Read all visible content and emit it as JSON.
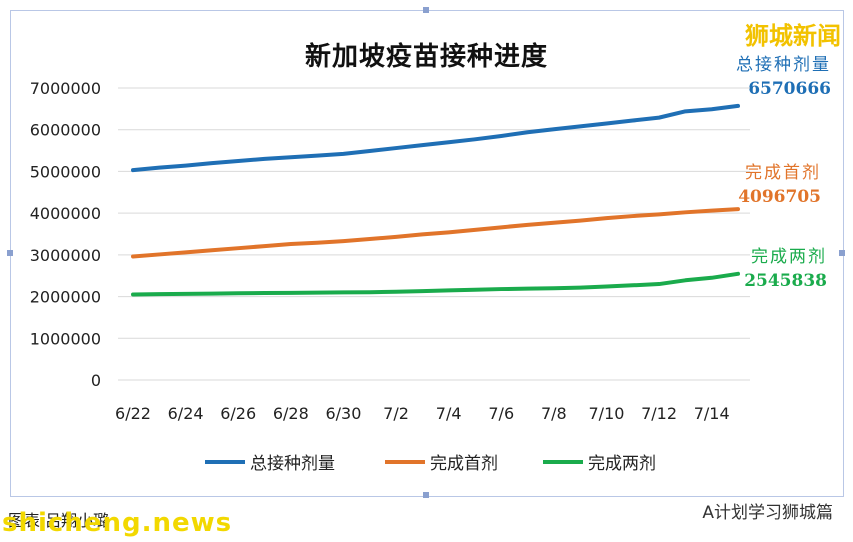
{
  "brand": "狮城新闻",
  "footer": {
    "left": "图表  吕翔小璐",
    "watermark": "shicheng.news",
    "right": "A计划学习狮城篇"
  },
  "chart_data": {
    "type": "line",
    "title": "新加坡疫苗接种进度",
    "x": [
      "6/22",
      "6/23",
      "6/24",
      "6/25",
      "6/26",
      "6/27",
      "6/28",
      "6/29",
      "6/30",
      "7/1",
      "7/2",
      "7/3",
      "7/4",
      "7/5",
      "7/6",
      "7/7",
      "7/8",
      "7/9",
      "7/10",
      "7/11",
      "7/12",
      "7/13",
      "7/14",
      "7/15"
    ],
    "x_tick_labels": [
      "6/22",
      "6/24",
      "6/26",
      "6/28",
      "6/30",
      "7/2",
      "7/4",
      "7/6",
      "7/8",
      "7/10",
      "7/12",
      "7/14"
    ],
    "ylim": [
      0,
      7000000
    ],
    "y_ticks": [
      "0",
      "1000000",
      "2000000",
      "3000000",
      "4000000",
      "5000000",
      "6000000",
      "7000000"
    ],
    "legend_position": "bottom",
    "grid": true,
    "series": [
      {
        "name": "总接种剂量",
        "color": "#1f6fb5",
        "end_label": "6570666",
        "values": [
          5030000,
          5090000,
          5140000,
          5200000,
          5250000,
          5300000,
          5340000,
          5380000,
          5420000,
          5490000,
          5560000,
          5630000,
          5700000,
          5770000,
          5850000,
          5940000,
          6010000,
          6080000,
          6150000,
          6220000,
          6290000,
          6440000,
          6490000,
          6570666
        ]
      },
      {
        "name": "完成首剂",
        "color": "#e1742a",
        "end_label": "4096705",
        "values": [
          2960000,
          3010000,
          3060000,
          3110000,
          3160000,
          3210000,
          3260000,
          3290000,
          3330000,
          3380000,
          3430000,
          3490000,
          3540000,
          3600000,
          3660000,
          3720000,
          3770000,
          3820000,
          3880000,
          3930000,
          3970000,
          4020000,
          4060000,
          4096705
        ]
      },
      {
        "name": "完成两剂",
        "color": "#1aab4c",
        "end_label": "2545838",
        "values": [
          2050000,
          2060000,
          2065000,
          2070000,
          2080000,
          2085000,
          2090000,
          2095000,
          2100000,
          2105000,
          2115000,
          2130000,
          2150000,
          2165000,
          2180000,
          2190000,
          2200000,
          2215000,
          2240000,
          2270000,
          2300000,
          2390000,
          2450000,
          2545838
        ]
      }
    ]
  }
}
